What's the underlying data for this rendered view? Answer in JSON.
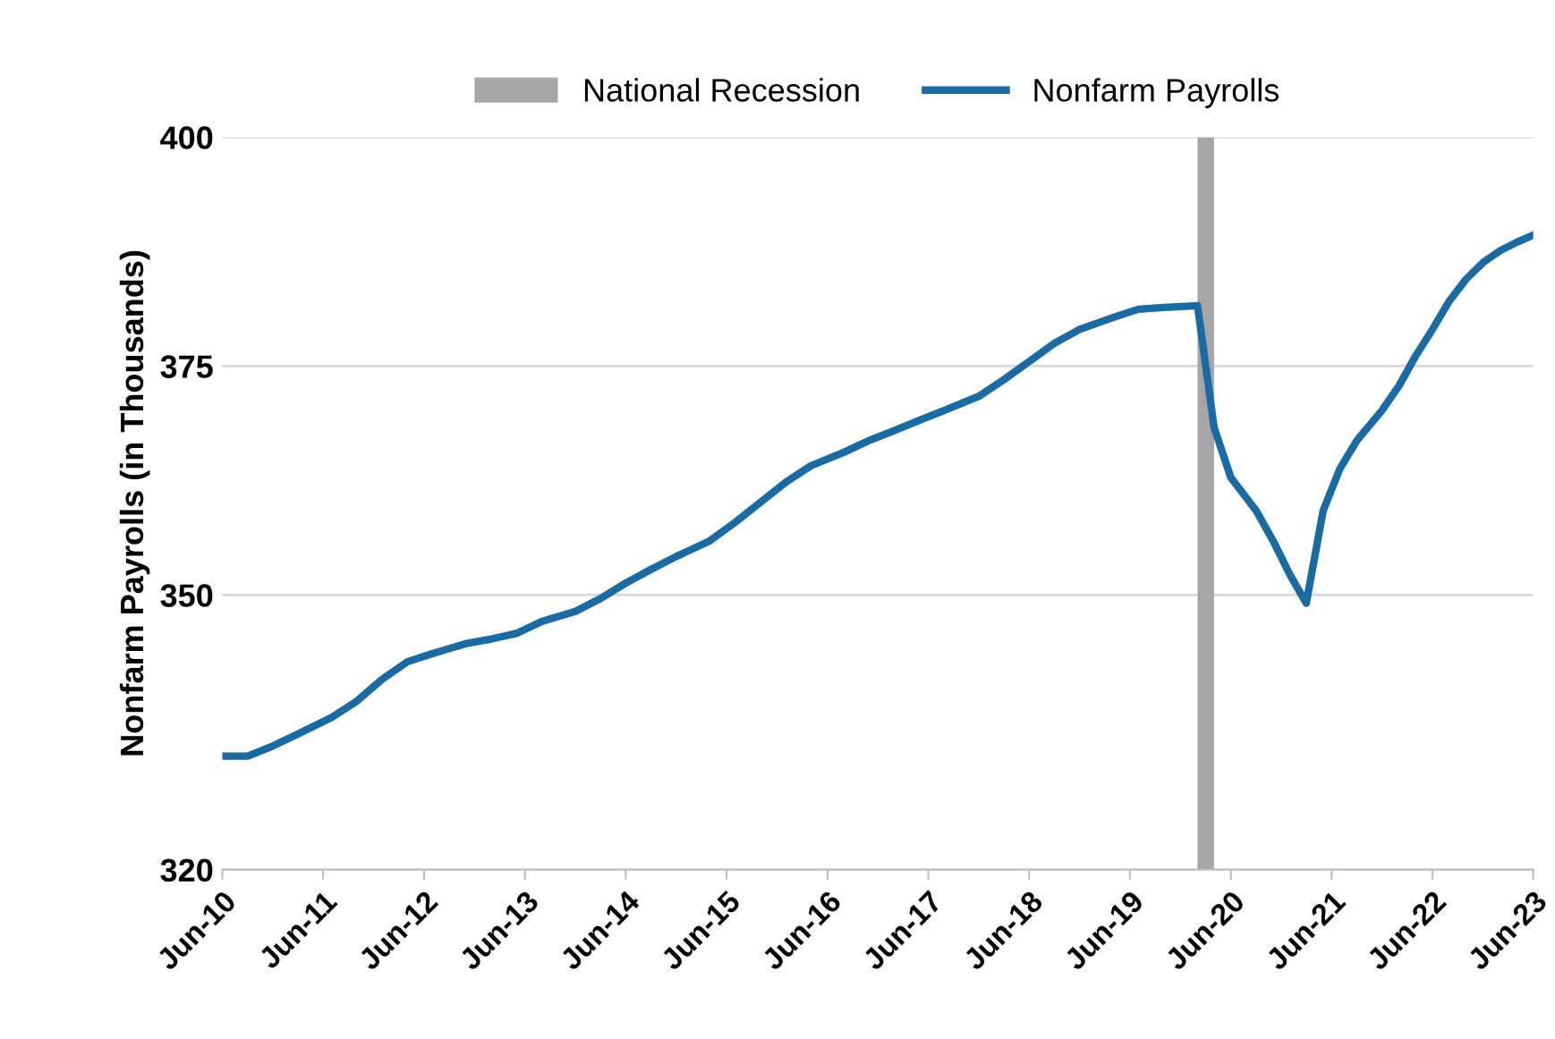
{
  "chart_data": {
    "type": "line",
    "ylabel": "Nonfarm Payrolls (in Thousands)",
    "x": [
      "2010-06",
      "2010-09",
      "2010-12",
      "2011-03",
      "2011-07",
      "2011-10",
      "2012-01",
      "2012-04",
      "2012-07",
      "2012-11",
      "2013-02",
      "2013-05",
      "2013-08",
      "2013-12",
      "2014-03",
      "2014-06",
      "2014-09",
      "2014-12",
      "2015-04",
      "2015-07",
      "2015-10",
      "2016-01",
      "2016-04",
      "2016-08",
      "2016-11",
      "2017-02",
      "2017-05",
      "2017-08",
      "2017-12",
      "2018-03",
      "2018-06",
      "2018-09",
      "2018-12",
      "2019-04",
      "2019-07",
      "2019-10",
      "2020-02",
      "2020-04",
      "2020-06",
      "2020-09",
      "2020-11",
      "2021-01",
      "2021-03",
      "2021-05",
      "2021-07",
      "2021-09",
      "2021-12",
      "2022-02",
      "2022-04",
      "2022-06",
      "2022-08",
      "2022-10",
      "2022-12",
      "2023-02",
      "2023-04",
      "2023-06"
    ],
    "series": [
      {
        "name": "Nonfarm Payrolls",
        "color": "#1a6aa3",
        "values": [
          332.4,
          332.4,
          333.5,
          334.8,
          336.6,
          338.4,
          340.8,
          342.7,
          343.6,
          344.7,
          345.2,
          345.8,
          347.1,
          348.2,
          349.6,
          351.3,
          352.8,
          354.2,
          355.9,
          357.9,
          360.1,
          362.3,
          364.1,
          365.6,
          366.9,
          368.0,
          369.1,
          370.2,
          371.7,
          373.5,
          375.5,
          377.5,
          379.0,
          380.3,
          381.2,
          381.4,
          381.6,
          368.3,
          362.8,
          359.2,
          355.9,
          352.2,
          349.1,
          359.2,
          363.8,
          366.9,
          370.2,
          372.9,
          376.1,
          379.0,
          382.1,
          384.5,
          386.3,
          387.6,
          388.5,
          389.3
        ]
      }
    ],
    "bands": [
      {
        "axis": "x",
        "from": "2020-02",
        "to": "2020-04",
        "label": "National Recession",
        "color": "#a6a6a6"
      }
    ],
    "xlim": [
      "2010-06",
      "2023-06"
    ],
    "xticks": [
      {
        "value": "2010-06",
        "label": "Jun-10"
      },
      {
        "value": "2011-06",
        "label": "Jun-11"
      },
      {
        "value": "2012-06",
        "label": "Jun-12"
      },
      {
        "value": "2013-06",
        "label": "Jun-13"
      },
      {
        "value": "2014-06",
        "label": "Jun-14"
      },
      {
        "value": "2015-06",
        "label": "Jun-15"
      },
      {
        "value": "2016-06",
        "label": "Jun-16"
      },
      {
        "value": "2017-06",
        "label": "Jun-17"
      },
      {
        "value": "2018-06",
        "label": "Jun-18"
      },
      {
        "value": "2019-06",
        "label": "Jun-19"
      },
      {
        "value": "2020-06",
        "label": "Jun-20"
      },
      {
        "value": "2021-06",
        "label": "Jun-21"
      },
      {
        "value": "2022-06",
        "label": "Jun-22"
      },
      {
        "value": "2023-06",
        "label": "Jun-23"
      }
    ],
    "ylim": [
      320,
      400
    ],
    "yticks": [
      320,
      350,
      375,
      400
    ],
    "grid": "y",
    "legend": "top",
    "marker": "none",
    "line_style": "solid"
  }
}
